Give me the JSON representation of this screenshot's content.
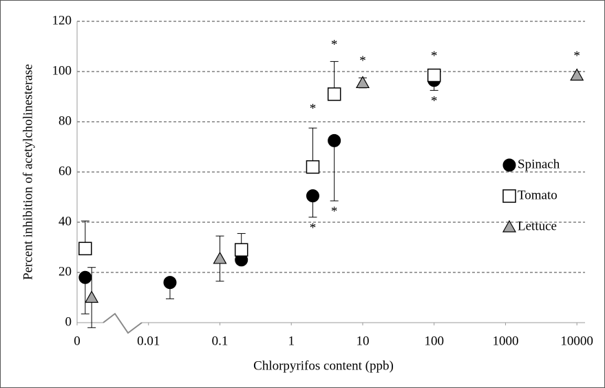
{
  "chart_data": {
    "type": "scatter",
    "x_label": "Chlorpyrifos content (ppb)",
    "y_label": "Percent inhibition of acetylcholinesterase",
    "log_x": true,
    "xlim": [
      0.001,
      13000
    ],
    "xticks": [
      {
        "value": 0.001,
        "label": "0"
      },
      0.01,
      0.1,
      1,
      10,
      100,
      1000,
      10000
    ],
    "ylim": [
      0,
      120
    ],
    "yticks": [
      0,
      20,
      40,
      60,
      80,
      100,
      120
    ],
    "grid": true,
    "legend": "right",
    "series": [
      {
        "name": "Spinach",
        "marker": "circle",
        "color": "#000000",
        "error_direction": "down",
        "x": [
          0.0013,
          0.02,
          0.2,
          2,
          4,
          100
        ],
        "values": [
          18,
          16,
          25,
          50.5,
          72.5,
          96.5
        ],
        "errors": [
          14.5,
          6.5,
          null,
          8.5,
          24,
          4
        ]
      },
      {
        "name": "Tomato",
        "marker": "square",
        "color": "#ffffff",
        "error_direction": "up",
        "x": [
          0.0013,
          0.2,
          2,
          4,
          100
        ],
        "values": [
          29.5,
          29,
          62,
          91,
          98.5
        ],
        "errors": [
          11,
          6.5,
          15.5,
          13,
          null
        ]
      },
      {
        "name": "Lettuce",
        "marker": "triangle",
        "color": "#a6a6a6",
        "error_direction": "both",
        "x": [
          0.0016,
          0.1,
          10,
          10000
        ],
        "values": [
          10,
          25.5,
          95.5,
          98.5
        ],
        "errors": [
          12,
          9,
          2,
          1.5
        ]
      }
    ],
    "annotations": [
      {
        "text": "*",
        "x": 2,
        "y": 86
      },
      {
        "text": "*",
        "x": 2,
        "y": 38.5
      },
      {
        "text": "*",
        "x": 4,
        "y": 111.5
      },
      {
        "text": "*",
        "x": 4,
        "y": 45
      },
      {
        "text": "*",
        "x": 10,
        "y": 105
      },
      {
        "text": "*",
        "x": 100,
        "y": 107
      },
      {
        "text": "*",
        "x": 100,
        "y": 89
      },
      {
        "text": "*",
        "x": 10000,
        "y": 107
      }
    ]
  }
}
